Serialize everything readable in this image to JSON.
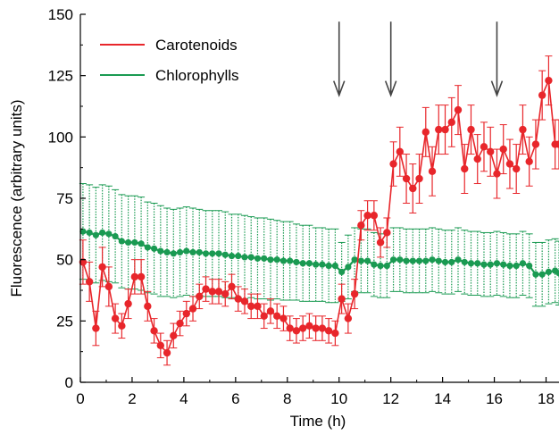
{
  "colors": {
    "carotenoids": "#e8262b",
    "chlorophylls": "#1a9a52",
    "axis": "#000000",
    "arrow": "#444444"
  },
  "chart_data": {
    "type": "line",
    "title": "",
    "xlabel": "Time (h)",
    "ylabel": "Fluorescence (arbitrary units)",
    "xlim": [
      0,
      18.5
    ],
    "ylim": [
      0,
      150
    ],
    "xticks": [
      0,
      2,
      4,
      6,
      8,
      10,
      12,
      14,
      16,
      18
    ],
    "xtick_labels": [
      "0",
      "2",
      "4",
      "6",
      "8",
      "10",
      "12",
      "14",
      "16",
      "18"
    ],
    "yticks": [
      0,
      25,
      50,
      75,
      100,
      125,
      150
    ],
    "ytick_labels": [
      "0",
      "25",
      "50",
      "75",
      "100",
      "125",
      "150"
    ],
    "legend": {
      "position": "top-left",
      "entries": [
        "Carotenoids",
        "Chlorophylls"
      ]
    },
    "annotations": [
      {
        "type": "down-arrow",
        "x": 10,
        "from_y": 147,
        "to_y": 117
      },
      {
        "type": "down-arrow",
        "x": 12,
        "from_y": 147,
        "to_y": 117
      },
      {
        "type": "down-arrow",
        "x": 16.1,
        "from_y": 147,
        "to_y": 117
      }
    ],
    "series": [
      {
        "name": "Carotenoids",
        "color": "#e8262b",
        "x": [
          0.1,
          0.35,
          0.6,
          0.85,
          1.1,
          1.35,
          1.6,
          1.85,
          2.1,
          2.35,
          2.6,
          2.85,
          3.1,
          3.35,
          3.6,
          3.85,
          4.1,
          4.35,
          4.6,
          4.85,
          5.1,
          5.35,
          5.6,
          5.85,
          6.1,
          6.35,
          6.6,
          6.85,
          7.1,
          7.35,
          7.6,
          7.85,
          8.1,
          8.35,
          8.6,
          8.85,
          9.1,
          9.35,
          9.6,
          9.85,
          10.1,
          10.35,
          10.6,
          10.85,
          11.1,
          11.35,
          11.6,
          11.85,
          12.1,
          12.35,
          12.6,
          12.85,
          13.1,
          13.35,
          13.6,
          13.85,
          14.1,
          14.35,
          14.6,
          14.85,
          15.1,
          15.35,
          15.6,
          15.85,
          16.1,
          16.35,
          16.6,
          16.85,
          17.1,
          17.35,
          17.6,
          17.85,
          18.1,
          18.35,
          18.5
        ],
        "y": [
          49,
          41,
          22,
          47,
          39,
          26,
          23,
          32,
          43,
          43,
          31,
          21,
          15,
          12,
          19,
          24,
          28,
          30,
          35,
          38,
          37,
          37,
          36,
          39,
          34,
          33,
          31,
          31,
          27,
          29,
          27,
          26,
          22,
          21,
          22,
          23,
          22,
          22,
          21,
          20,
          34,
          26,
          36,
          64,
          68,
          68,
          57,
          61,
          89,
          94,
          83,
          79,
          83,
          102,
          86,
          103,
          103,
          106,
          111,
          87,
          103,
          91,
          96,
          94,
          85,
          95,
          89,
          87,
          103,
          90,
          97,
          117,
          123,
          97,
          97
        ],
        "err": [
          9,
          8,
          7,
          8,
          8,
          6,
          5,
          6,
          7,
          7,
          6,
          5,
          5,
          5,
          5,
          5,
          5,
          5,
          5,
          5,
          5,
          5,
          5,
          5,
          5,
          5,
          5,
          5,
          5,
          5,
          5,
          5,
          5,
          5,
          5,
          5,
          5,
          5,
          5,
          5,
          6,
          6,
          6,
          6,
          6,
          6,
          6,
          6,
          9,
          10,
          10,
          10,
          10,
          10,
          10,
          10,
          10,
          10,
          10,
          10,
          10,
          10,
          10,
          10,
          10,
          10,
          10,
          10,
          10,
          10,
          10,
          10,
          10,
          10,
          10
        ]
      },
      {
        "name": "Chlorophylls",
        "color": "#1a9a52",
        "x": [
          0.1,
          0.35,
          0.6,
          0.85,
          1.1,
          1.35,
          1.6,
          1.85,
          2.1,
          2.35,
          2.6,
          2.85,
          3.1,
          3.35,
          3.6,
          3.85,
          4.1,
          4.35,
          4.6,
          4.85,
          5.1,
          5.35,
          5.6,
          5.85,
          6.1,
          6.35,
          6.6,
          6.85,
          7.1,
          7.35,
          7.6,
          7.85,
          8.1,
          8.35,
          8.6,
          8.85,
          9.1,
          9.35,
          9.6,
          9.85,
          10.1,
          10.35,
          10.6,
          10.85,
          11.1,
          11.35,
          11.6,
          11.85,
          12.1,
          12.35,
          12.6,
          12.85,
          13.1,
          13.35,
          13.6,
          13.85,
          14.1,
          14.35,
          14.6,
          14.85,
          15.1,
          15.35,
          15.6,
          15.85,
          16.1,
          16.35,
          16.6,
          16.85,
          17.1,
          17.35,
          17.6,
          17.85,
          18.1,
          18.35,
          18.5
        ],
        "y": [
          61.5,
          61,
          60,
          61,
          60.5,
          59.5,
          57.5,
          57,
          57,
          56.5,
          55,
          54.5,
          53.5,
          53,
          52.5,
          53,
          53.5,
          53,
          53,
          52.5,
          52.5,
          52.5,
          52,
          51.5,
          51.5,
          51,
          51,
          50.5,
          50.5,
          50,
          50,
          49.5,
          49.5,
          49,
          48.5,
          48.5,
          48,
          48,
          47.5,
          47.5,
          45,
          47,
          50,
          49.5,
          49.5,
          48,
          47.5,
          47.5,
          50,
          50,
          49.5,
          49.5,
          49.5,
          49.5,
          50,
          49.5,
          49,
          49,
          50,
          49,
          48.5,
          48.5,
          48,
          48,
          48.5,
          48,
          47.5,
          47.5,
          48.5,
          47.5,
          44,
          44,
          45,
          45.5,
          44.5
        ],
        "err": [
          19.5,
          19.5,
          19.5,
          19.5,
          19.5,
          19,
          19,
          19,
          19,
          19,
          18.5,
          18.5,
          18.5,
          18,
          18,
          18,
          18,
          18,
          17.5,
          17.5,
          17.5,
          17.5,
          17.5,
          17,
          17,
          17,
          16.5,
          16.5,
          16.5,
          16.5,
          16,
          16,
          16,
          15.5,
          15.5,
          15.5,
          15,
          15,
          15,
          15,
          12,
          13,
          13,
          13,
          13,
          13,
          13,
          13,
          13,
          13,
          13,
          13,
          13,
          13,
          13,
          13,
          13,
          13,
          13,
          13,
          13,
          13,
          13,
          13,
          13,
          13,
          13,
          13,
          13,
          13,
          13,
          13,
          13,
          13,
          13
        ]
      }
    ]
  }
}
